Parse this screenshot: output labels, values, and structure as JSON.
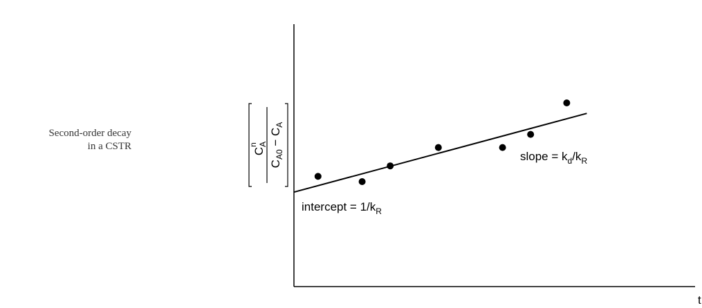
{
  "caption": {
    "line1": "Second-order decay",
    "line2": "in a CSTR"
  },
  "chart_data": {
    "type": "scatter",
    "xlabel": "t",
    "ylabel": {
      "numerator_base": "C",
      "numerator_sub": "A",
      "numerator_sup": "n",
      "denominator_a": "C",
      "denominator_a_sub": "A0",
      "denominator_op": " − ",
      "denominator_b": "C",
      "denominator_b_sub": "A"
    },
    "xlim": [
      0,
      10
    ],
    "ylim": [
      0,
      10
    ],
    "points": [
      {
        "x": 0.6,
        "y": 4.2
      },
      {
        "x": 1.7,
        "y": 4.0
      },
      {
        "x": 2.4,
        "y": 4.6
      },
      {
        "x": 3.6,
        "y": 5.3
      },
      {
        "x": 5.2,
        "y": 5.3
      },
      {
        "x": 5.9,
        "y": 5.8
      },
      {
        "x": 6.8,
        "y": 7.0
      }
    ],
    "fit_line": {
      "x": [
        0,
        7.3
      ],
      "y": [
        3.6,
        6.6
      ]
    },
    "annotations": {
      "intercept": {
        "text": "intercept = 1/k",
        "sub": "R"
      },
      "slope": {
        "text": "slope = k",
        "sub1": "d",
        "mid": "/k",
        "sub2": "R"
      }
    }
  }
}
